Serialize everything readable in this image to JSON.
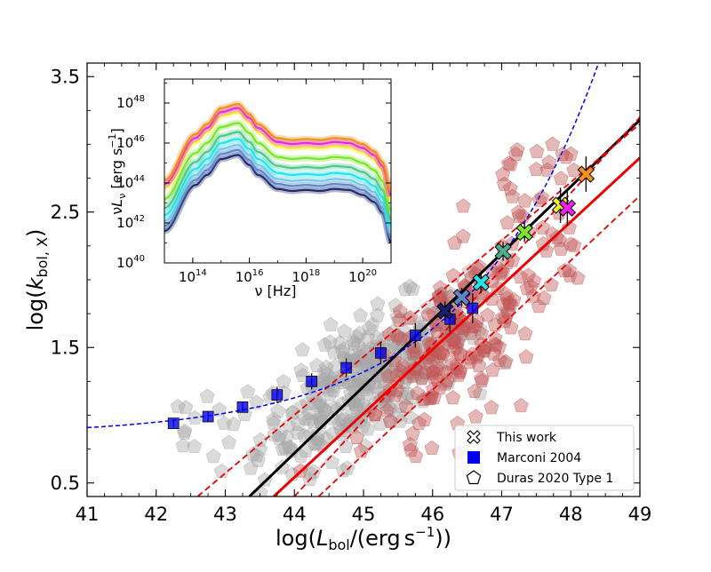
{
  "chart_data": {
    "type": "scatter",
    "xlabel": "log(L_bol/(erg s^-1))",
    "ylabel": "log(k_bol,X)",
    "xlim": [
      41,
      49
    ],
    "ylim": [
      0.4,
      3.6
    ],
    "x_ticks": [
      41,
      42,
      43,
      44,
      45,
      46,
      47,
      48,
      49
    ],
    "y_ticks": [
      0.5,
      1.5,
      2.5,
      3.5
    ],
    "x_tick_labels": [
      "41",
      "42",
      "43",
      "44",
      "45",
      "46",
      "47",
      "48",
      "49"
    ],
    "y_tick_labels": [
      "0.5",
      "1.5",
      "2.5",
      "3.5"
    ],
    "legend": {
      "position": "bottom-right",
      "entries": [
        "This work",
        "Marconi 2004",
        "Duras 2020 Type 1"
      ]
    },
    "series": [
      {
        "name": "This work",
        "marker": "X",
        "points": [
          {
            "x": 46.18,
            "y": 1.77,
            "yerr": 0.07,
            "color": "#1a1f6b"
          },
          {
            "x": 46.42,
            "y": 1.87,
            "yerr": 0.07,
            "color": "#5f86c9"
          },
          {
            "x": 46.7,
            "y": 1.98,
            "yerr": 0.08,
            "color": "#22e6ea"
          },
          {
            "x": 47.02,
            "y": 2.21,
            "yerr": 0.07,
            "color": "#4fae8c"
          },
          {
            "x": 47.33,
            "y": 2.35,
            "yerr": 0.07,
            "color": "#7be52c"
          },
          {
            "x": 47.85,
            "y": 2.55,
            "yerr": 0.13,
            "color": "#f2f230"
          },
          {
            "x": 47.95,
            "y": 2.53,
            "yerr": 0.13,
            "color": "#ee22ee"
          },
          {
            "x": 48.22,
            "y": 2.78,
            "yerr": 0.13,
            "color": "#f0911c"
          }
        ]
      },
      {
        "name": "Marconi 2004",
        "marker": "square",
        "color": "#0000ee",
        "points": [
          {
            "x": 42.25,
            "y": 0.94,
            "yerr": 0.03
          },
          {
            "x": 42.75,
            "y": 0.99,
            "yerr": 0.04
          },
          {
            "x": 43.25,
            "y": 1.06,
            "yerr": 0.04
          },
          {
            "x": 43.75,
            "y": 1.15,
            "yerr": 0.06
          },
          {
            "x": 44.25,
            "y": 1.25,
            "yerr": 0.06
          },
          {
            "x": 44.75,
            "y": 1.35,
            "yerr": 0.07
          },
          {
            "x": 45.25,
            "y": 1.46,
            "yerr": 0.08
          },
          {
            "x": 45.75,
            "y": 1.59,
            "yerr": 0.09
          },
          {
            "x": 46.25,
            "y": 1.71,
            "yerr": 0.1
          },
          {
            "x": 46.58,
            "y": 1.79,
            "yerr": 0.11
          }
        ]
      },
      {
        "name": "Duras 2020 Type 1",
        "marker": "pentagon",
        "color_gray": "#a6a6a6",
        "color_red": "#c25555",
        "note": "~500 sources; gray = low luminosity sample, red = high luminosity sample"
      }
    ],
    "lines": [
      {
        "name": "best fit (this work)",
        "color": "#000000",
        "style": "solid",
        "points": [
          [
            43.35,
            0.4
          ],
          [
            49,
            3.18
          ]
        ]
      },
      {
        "name": "Duras fit",
        "color": "#ee0000",
        "style": "solid",
        "points": [
          [
            43.7,
            0.4
          ],
          [
            49,
            2.9
          ]
        ]
      },
      {
        "name": "Duras fit upper bound",
        "color": "#ee0000",
        "style": "dashed",
        "points": [
          [
            42.6,
            0.4
          ],
          [
            49,
            3.15
          ]
        ]
      },
      {
        "name": "Duras fit lower bound",
        "color": "#ee0000",
        "style": "dashed",
        "points": [
          [
            44.35,
            0.4
          ],
          [
            49,
            2.62
          ]
        ]
      },
      {
        "name": "Duras fit bound 3",
        "color": "#ee0000",
        "style": "dashed",
        "points": [
          [
            44.0,
            0.4
          ],
          [
            49,
            3.2
          ]
        ]
      },
      {
        "name": "Marconi 2004 relation",
        "color": "#0000ee",
        "style": "dashed",
        "curve": "marconi"
      }
    ],
    "inset": {
      "type": "line",
      "xlabel": "ν [Hz]",
      "ylabel": "νL_ν [erg s^-1]",
      "x_log_range": [
        13,
        21
      ],
      "y_log_range": [
        40,
        49.2
      ],
      "x_tick_exponents": [
        14,
        16,
        18,
        20
      ],
      "y_tick_exponents": [
        40,
        42,
        44,
        46,
        48
      ],
      "tick_base": "10",
      "sed_anchor_log_nu": [
        13,
        14.1,
        14.5,
        15.0,
        15.6,
        16.0,
        16.3,
        17.0,
        17.5,
        18.0,
        18.5,
        19.0,
        19.5,
        20.0,
        20.4,
        20.7,
        21.0
      ],
      "sed_shape_dex": [
        -3.8,
        -1.5,
        -1.0,
        -0.2,
        0.0,
        -0.5,
        -1.0,
        -1.7,
        -1.8,
        -1.75,
        -1.8,
        -1.7,
        -1.75,
        -2.0,
        -2.35,
        -2.9,
        -4.4
      ],
      "seds": [
        {
          "peak_log_nuLnu": 45.4,
          "color": "#1f2a6e"
        },
        {
          "peak_log_nuLnu": 45.65,
          "color": "#5f86c9"
        },
        {
          "peak_log_nuLnu": 45.9,
          "color": "#78c6e6"
        },
        {
          "peak_log_nuLnu": 46.2,
          "color": "#22e6ea"
        },
        {
          "peak_log_nuLnu": 46.55,
          "color": "#4fc88c"
        },
        {
          "peak_log_nuLnu": 47.0,
          "color": "#7be52c"
        },
        {
          "peak_log_nuLnu": 47.55,
          "color": "#f2e830"
        },
        {
          "peak_log_nuLnu": 47.75,
          "color": "#ee22ee"
        },
        {
          "peak_log_nuLnu": 47.95,
          "color": "#f0911c"
        }
      ]
    }
  }
}
